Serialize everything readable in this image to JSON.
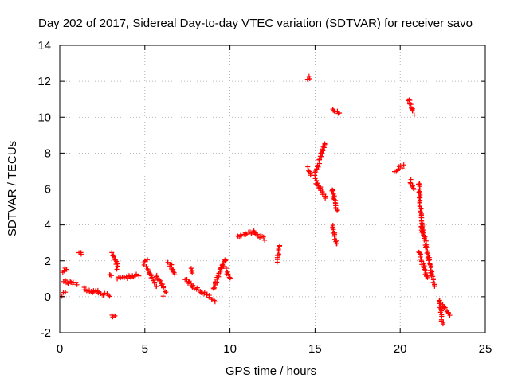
{
  "chart_data": {
    "type": "scatter",
    "title": "Day 202 of 2017, Sidereal Day-to-day VTEC variation (SDTVAR) for receiver savo",
    "xlabel": "GPS time / hours",
    "ylabel": "SDTVAR / TECUs",
    "xlim": [
      0,
      25
    ],
    "ylim": [
      -2,
      14
    ],
    "x_ticks": [
      0,
      5,
      10,
      15,
      20,
      25
    ],
    "y_ticks": [
      -2,
      0,
      2,
      4,
      6,
      8,
      10,
      12,
      14
    ],
    "grid": true,
    "marker": "plus",
    "colors": {
      "series": "#ff0000",
      "grid": "#a0a0a0",
      "axis": "#000000"
    },
    "segments": [
      {
        "x": [
          0.2,
          1.0
        ],
        "y": [
          0.9,
          0.7
        ]
      },
      {
        "x": [
          0.15,
          0.35
        ],
        "y": [
          0.1,
          0.25
        ]
      },
      {
        "x": [
          0.2,
          0.4
        ],
        "y": [
          1.3,
          1.6
        ]
      },
      {
        "x": [
          1.15,
          1.3
        ],
        "y": [
          2.4,
          2.4
        ]
      },
      {
        "x": [
          1.4,
          2.0
        ],
        "y": [
          0.45,
          0.2
        ]
      },
      {
        "x": [
          2.0,
          2.9
        ],
        "y": [
          0.35,
          0.05
        ]
      },
      {
        "x": [
          2.9,
          3.0
        ],
        "y": [
          1.2,
          1.2
        ]
      },
      {
        "x": [
          3.1,
          3.2
        ],
        "y": [
          -1.1,
          -1.1
        ]
      },
      {
        "x": [
          3.1,
          3.4
        ],
        "y": [
          2.4,
          1.6
        ]
      },
      {
        "x": [
          3.4,
          4.6
        ],
        "y": [
          1.0,
          1.2
        ]
      },
      {
        "x": [
          4.9,
          5.1
        ],
        "y": [
          1.8,
          2.1
        ]
      },
      {
        "x": [
          5.1,
          5.7
        ],
        "y": [
          1.6,
          0.6
        ]
      },
      {
        "x": [
          5.7,
          6.1
        ],
        "y": [
          1.2,
          0.5
        ]
      },
      {
        "x": [
          6.1,
          6.2
        ],
        "y": [
          0.1,
          0.3
        ]
      },
      {
        "x": [
          6.4,
          6.8
        ],
        "y": [
          1.9,
          1.3
        ]
      },
      {
        "x": [
          7.4,
          7.8
        ],
        "y": [
          1.0,
          0.6
        ]
      },
      {
        "x": [
          7.7,
          7.8
        ],
        "y": [
          1.6,
          1.3
        ]
      },
      {
        "x": [
          7.8,
          8.8
        ],
        "y": [
          0.6,
          0.0
        ]
      },
      {
        "x": [
          8.9,
          9.1
        ],
        "y": [
          -0.1,
          -0.3
        ]
      },
      {
        "x": [
          9.0,
          9.6
        ],
        "y": [
          0.4,
          1.8
        ]
      },
      {
        "x": [
          9.5,
          9.8
        ],
        "y": [
          1.7,
          2.1
        ]
      },
      {
        "x": [
          9.8,
          10.0
        ],
        "y": [
          1.5,
          1.0
        ]
      },
      {
        "x": [
          10.4,
          11.4
        ],
        "y": [
          3.4,
          3.6
        ]
      },
      {
        "x": [
          11.4,
          12.0
        ],
        "y": [
          3.6,
          3.2
        ]
      },
      {
        "x": [
          12.8,
          12.9
        ],
        "y": [
          2.0,
          2.9
        ]
      },
      {
        "x": [
          14.6,
          14.7
        ],
        "y": [
          12.2,
          12.2
        ]
      },
      {
        "x": [
          14.6,
          14.7
        ],
        "y": [
          7.2,
          6.8
        ]
      },
      {
        "x": [
          15.0,
          15.6
        ],
        "y": [
          6.8,
          8.6
        ]
      },
      {
        "x": [
          15.0,
          15.6
        ],
        "y": [
          6.5,
          5.5
        ]
      },
      {
        "x": [
          16.0,
          16.4
        ],
        "y": [
          10.5,
          10.2
        ]
      },
      {
        "x": [
          16.0,
          16.3
        ],
        "y": [
          6.0,
          4.8
        ]
      },
      {
        "x": [
          16.0,
          16.3
        ],
        "y": [
          3.9,
          2.9
        ]
      },
      {
        "x": [
          19.7,
          20.2
        ],
        "y": [
          7.0,
          7.3
        ]
      },
      {
        "x": [
          20.5,
          20.8
        ],
        "y": [
          11.0,
          10.2
        ]
      },
      {
        "x": [
          20.6,
          20.8
        ],
        "y": [
          6.5,
          5.9
        ]
      },
      {
        "x": [
          21.1,
          21.3
        ],
        "y": [
          6.3,
          3.5
        ]
      },
      {
        "x": [
          21.1,
          21.6
        ],
        "y": [
          2.5,
          1.0
        ]
      },
      {
        "x": [
          21.3,
          22.0
        ],
        "y": [
          3.9,
          0.6
        ]
      },
      {
        "x": [
          22.3,
          22.5
        ],
        "y": [
          -0.2,
          -1.5
        ]
      },
      {
        "x": [
          22.5,
          22.9
        ],
        "y": [
          -0.4,
          -1.0
        ]
      }
    ]
  }
}
